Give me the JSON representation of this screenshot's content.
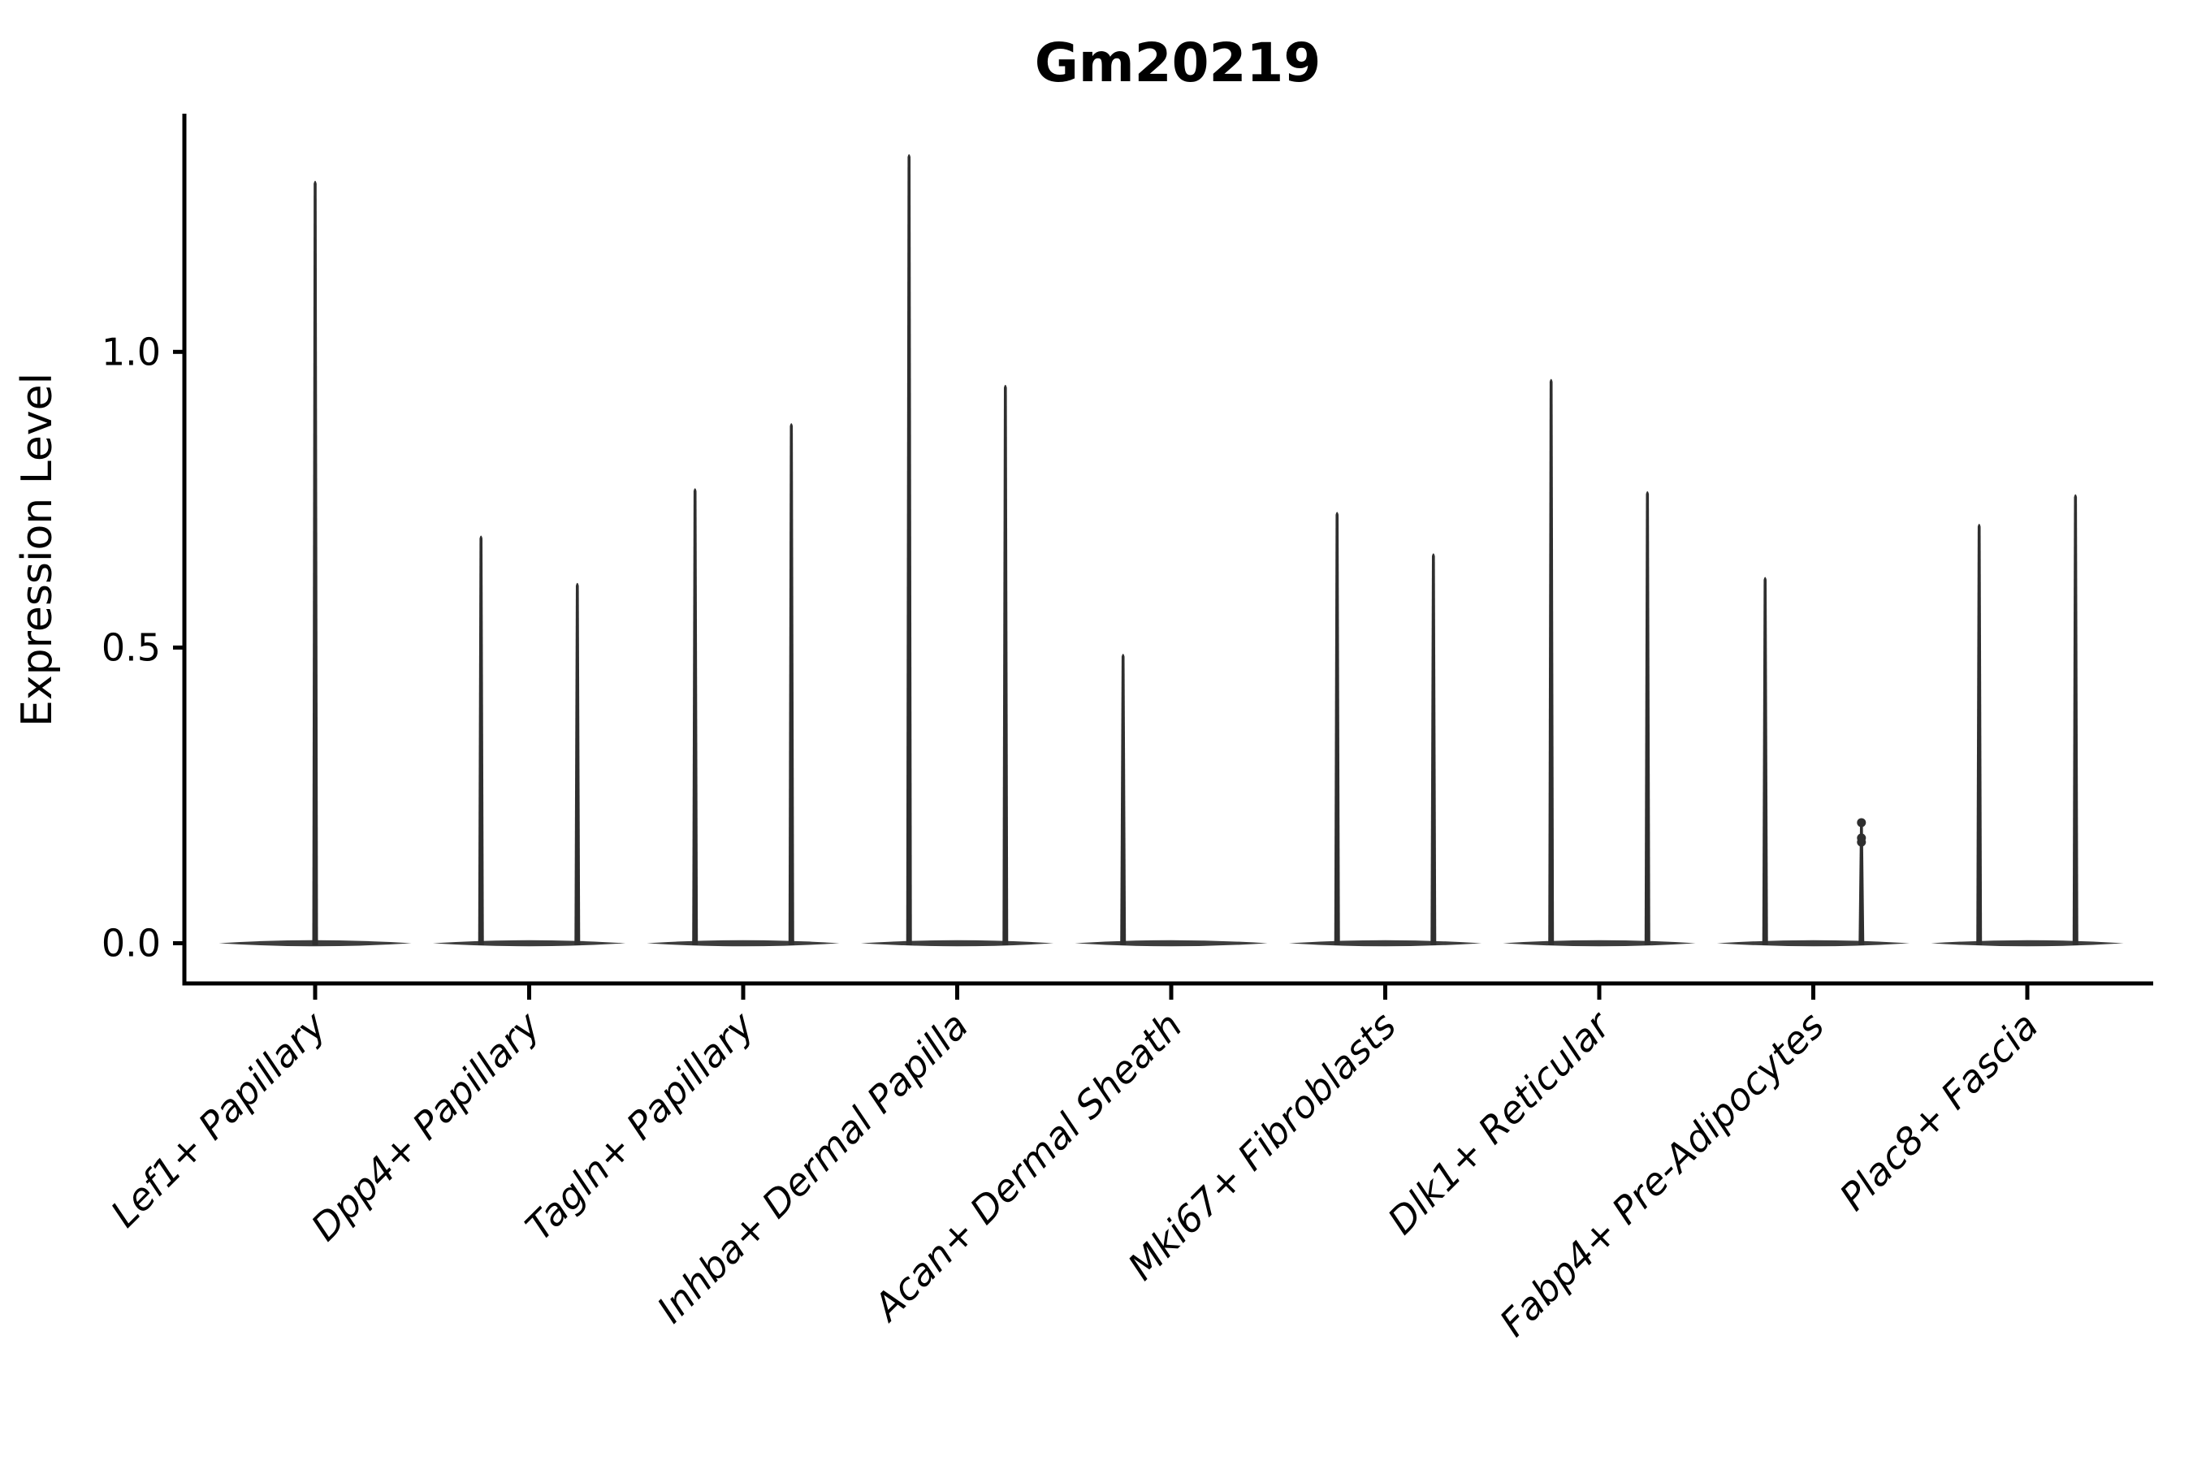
{
  "figure": {
    "title": "Gm20219",
    "background": "#ffffff"
  },
  "axes": {
    "ylabel": "Expression Level",
    "ytick_labels": [
      "0.0",
      "0.5",
      "1.0"
    ]
  },
  "chart_data": {
    "type": "violin",
    "title": "Gm20219",
    "xlabel": "",
    "ylabel": "Expression Level",
    "ylim": [
      -0.067,
      1.402
    ],
    "yticks": [
      0.0,
      0.5,
      1.0
    ],
    "ytick_labels": [
      "0.0",
      "0.5",
      "1.0"
    ],
    "grid": false,
    "legend_position": "none",
    "categories": [
      "Lef1+ Papillary",
      "Dpp4+ Papillary",
      "Tagln+ Papillary",
      "Inhba+ Dermal Papilla",
      "Acan+ Dermal Sheath",
      "Mki67+ Fibroblasts",
      "Dlk1+ Reticular",
      "Fabp4+ Pre-Adipocytes",
      "Plac8+ Fascia"
    ],
    "description": "Violin plot of Gm20219 expression; nearly all cells at 0 (wide flat base), thin spikes mark maximum expressing cells",
    "violin_halfwidth": 0.225,
    "group_halfwidth": 0.45,
    "groups": [
      {
        "category": "Lef1+ Papillary",
        "violins": [
          {
            "offset": 0.0,
            "max": 1.29
          }
        ]
      },
      {
        "category": "Dpp4+ Papillary",
        "violins": [
          {
            "offset": -0.225,
            "max": 0.69
          },
          {
            "offset": 0.225,
            "max": 0.61
          }
        ]
      },
      {
        "category": "Tagln+ Papillary",
        "violins": [
          {
            "offset": -0.225,
            "max": 0.77
          },
          {
            "offset": 0.225,
            "max": 0.88
          }
        ]
      },
      {
        "category": "Inhba+ Dermal Papilla",
        "violins": [
          {
            "offset": -0.225,
            "max": 1.335
          },
          {
            "offset": 0.225,
            "max": 0.945
          }
        ]
      },
      {
        "category": "Acan+ Dermal Sheath",
        "violins": [
          {
            "offset": -0.225,
            "max": 0.49
          },
          {
            "offset": 0.225,
            "max": 0.0
          }
        ]
      },
      {
        "category": "Mki67+ Fibroblasts",
        "violins": [
          {
            "offset": -0.225,
            "max": 0.73
          },
          {
            "offset": 0.225,
            "max": 0.66
          }
        ]
      },
      {
        "category": "Dlk1+ Reticular",
        "violins": [
          {
            "offset": -0.225,
            "max": 0.955
          },
          {
            "offset": 0.225,
            "max": 0.765
          }
        ]
      },
      {
        "category": "Fabp4+ Pre-Adipocytes",
        "violins": [
          {
            "offset": -0.225,
            "max": 0.62
          },
          {
            "offset": 0.225,
            "max": 0.204,
            "dots": [
              0.204,
              0.178,
              0.171
            ]
          }
        ]
      },
      {
        "category": "Plac8+ Fascia",
        "violins": [
          {
            "offset": -0.225,
            "max": 0.71
          },
          {
            "offset": 0.225,
            "max": 0.76
          }
        ]
      }
    ],
    "colors": {
      "line": "#2f2f2f",
      "body": "#3d3d3d",
      "spine": "#000000",
      "text": "#000000"
    }
  }
}
